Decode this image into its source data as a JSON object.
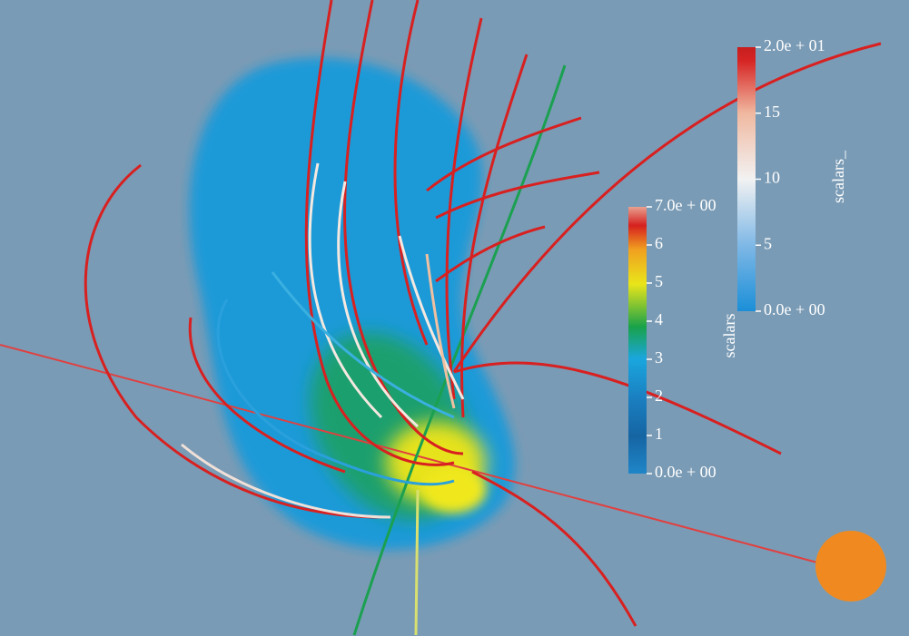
{
  "colorbars": [
    {
      "title": "scalars",
      "range": [
        0,
        7
      ],
      "ticks": [
        {
          "value": 0,
          "label": "0.0e + 00"
        },
        1,
        2,
        3,
        4,
        5,
        6,
        {
          "value": 7,
          "label": "7.0e + 00"
        }
      ]
    },
    {
      "title": "scalars_",
      "range": [
        0,
        20
      ],
      "ticks": [
        {
          "value": 0,
          "label": "0.0e + 00"
        },
        5,
        10,
        15,
        {
          "value": 20,
          "label": "2.0e + 01"
        }
      ]
    }
  ]
}
